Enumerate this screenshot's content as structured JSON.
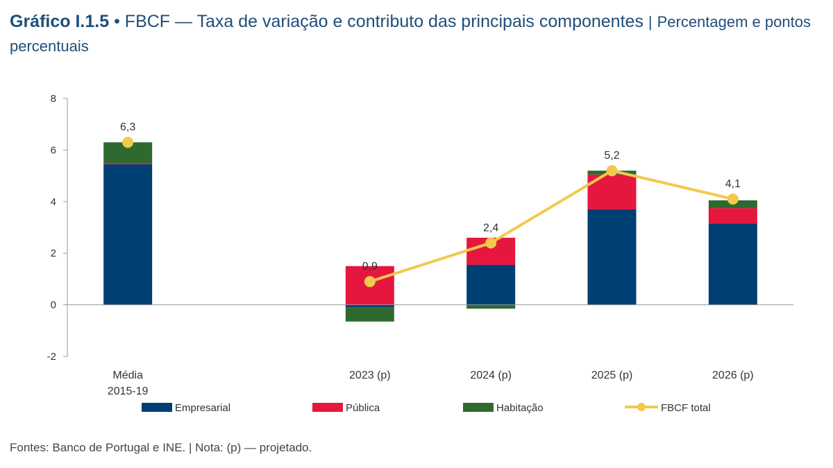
{
  "header": {
    "label": "Gráfico I.1.5",
    "bullet": "•",
    "title": "FBCF — Taxa de variação e contributo das principais componentes",
    "separator": "|",
    "unit": "Percentagem e pontos percentuais"
  },
  "footer": {
    "sources": "Fontes: Banco de Portugal e INE.",
    "separator": "|",
    "note": "Nota: (p) — projetado."
  },
  "colors": {
    "empresarial": "#003f73",
    "publica": "#e5173f",
    "habitacao": "#2e6a30",
    "total": "#f2c94c",
    "axis": "#999999"
  },
  "chart_data": {
    "type": "bar",
    "stacked": true,
    "categories": [
      "Média\n2015-19",
      "",
      "2023 (p)",
      "2024 (p)",
      "2025 (p)",
      "2026 (p)"
    ],
    "series": [
      {
        "name": "Empresarial",
        "key": "empresarial",
        "values": [
          5.45,
          null,
          -0.1,
          1.55,
          3.7,
          3.15
        ]
      },
      {
        "name": "Pública",
        "key": "publica",
        "values": [
          0.05,
          null,
          1.5,
          1.05,
          1.35,
          0.6
        ]
      },
      {
        "name": "Habitação",
        "key": "habitacao",
        "values": [
          0.8,
          null,
          -0.55,
          -0.15,
          0.15,
          0.3
        ]
      }
    ],
    "line": {
      "name": "FBCF total",
      "key": "total",
      "values": [
        6.3,
        null,
        0.9,
        2.4,
        5.2,
        4.1
      ]
    },
    "data_labels": [
      "6,3",
      "",
      "0,9",
      "2,4",
      "5,2",
      "4,1"
    ],
    "ylim": [
      -2,
      8
    ],
    "yticks": [
      -2,
      0,
      2,
      4,
      6,
      8
    ],
    "xlabel": "",
    "ylabel": "",
    "legend": [
      "Empresarial",
      "Pública",
      "Habitação",
      "FBCF total"
    ],
    "legend_position": "bottom"
  }
}
